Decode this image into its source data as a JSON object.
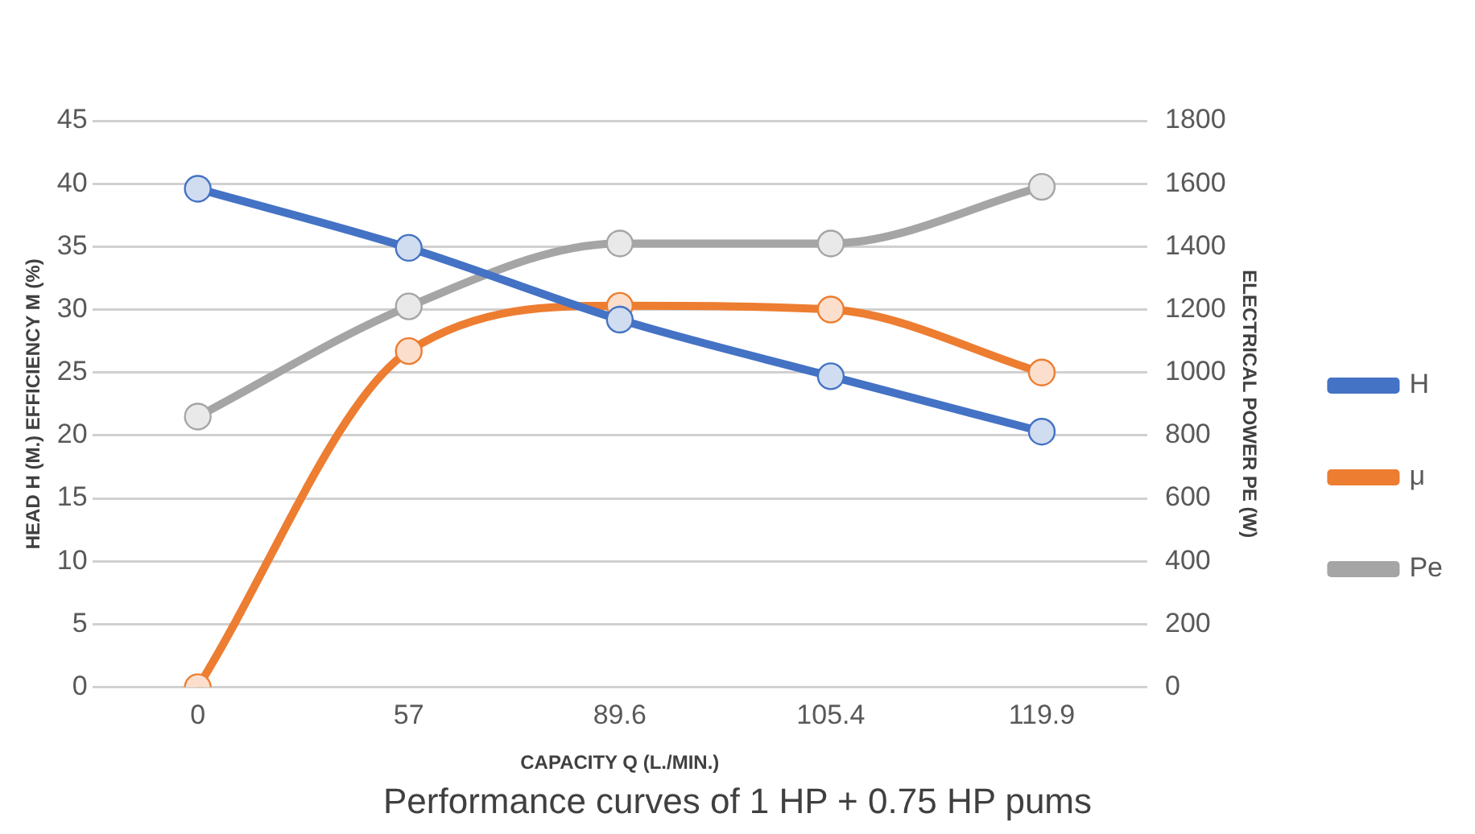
{
  "chart_data": {
    "type": "line",
    "title": "Performance curves of 1 HP + 0.75 HP pums",
    "xlabel": "CAPACITY Q (L./MIN.)",
    "ylabel": "HEAD H (M.) EFFICIENCY M (%)",
    "y2label": "ELECTRICAL POWER PE (W)",
    "categories": [
      "0",
      "57",
      "89.6",
      "105.4",
      "119.9"
    ],
    "series": [
      {
        "name": "H",
        "color": "#4472c4",
        "values": [
          39.6,
          34.9,
          29.2,
          24.7,
          20.3
        ]
      },
      {
        "name": "μ",
        "color": "#ed7d31",
        "values": [
          0,
          26.7,
          30.3,
          30.0,
          25.0
        ]
      },
      {
        "name": "Pe",
        "color": "#a5a5a5",
        "axis": "y2",
        "values": [
          860,
          1210,
          1410,
          1410,
          1590
        ]
      }
    ],
    "ylim": [
      0,
      45
    ],
    "yticks": [
      0,
      5,
      10,
      15,
      20,
      25,
      30,
      35,
      40,
      45
    ],
    "y2lim": [
      0,
      1800
    ],
    "y2ticks": [
      0,
      200,
      400,
      600,
      800,
      1000,
      1200,
      1400,
      1600,
      1800
    ],
    "grid": "y",
    "legend": "right",
    "marker": "circle"
  }
}
